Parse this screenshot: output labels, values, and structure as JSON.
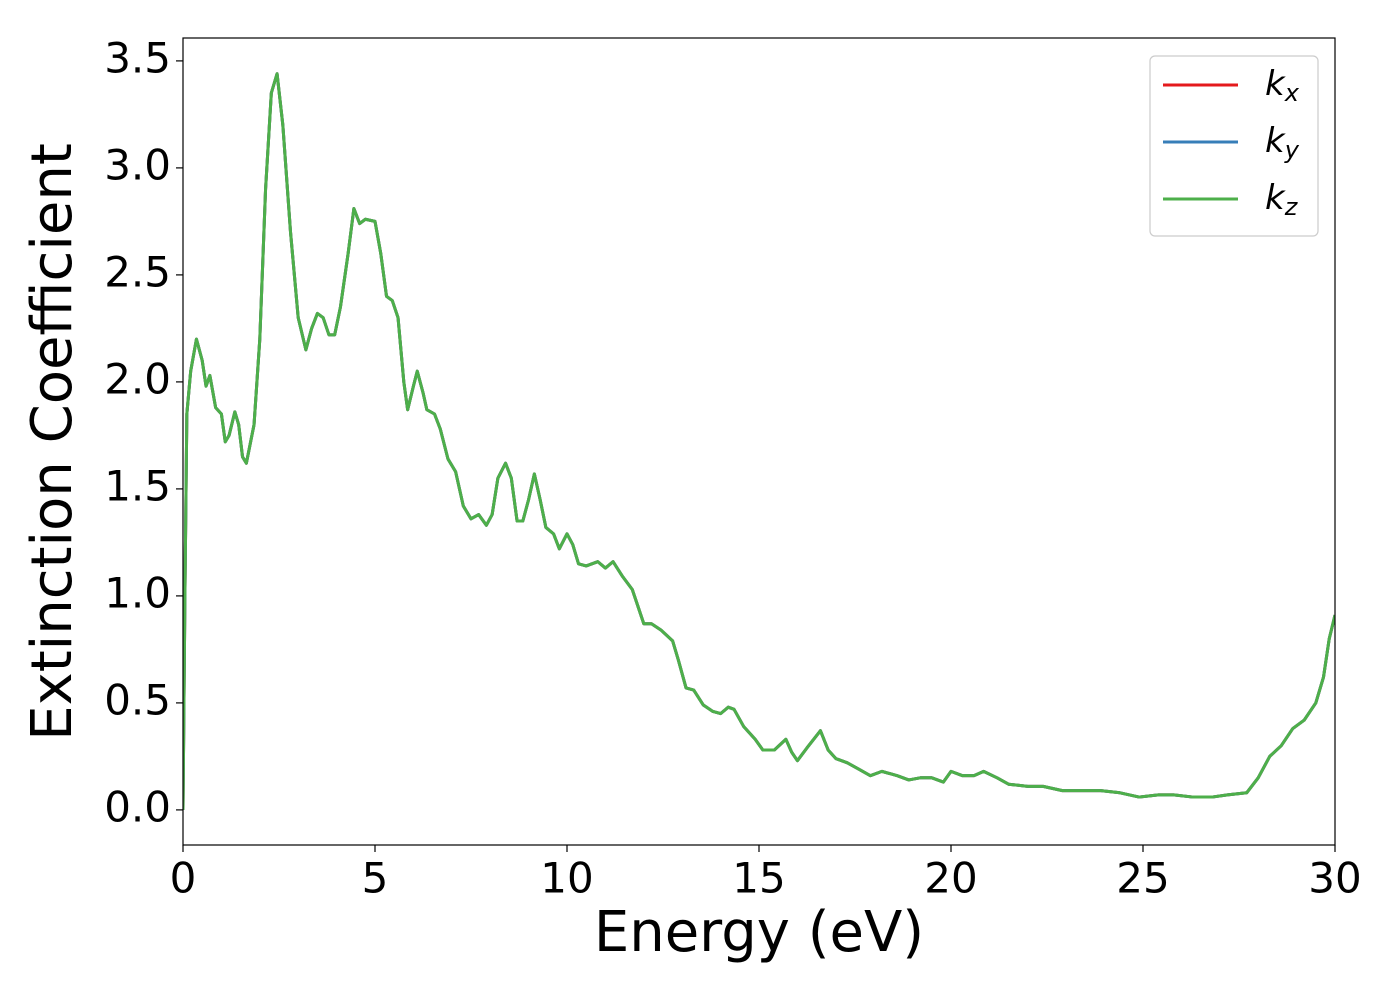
{
  "chart_data": {
    "type": "line",
    "xlabel": "Energy (eV)",
    "ylabel": "Extinction Coefficient",
    "xlim": [
      0,
      30
    ],
    "ylim": [
      -0.164,
      3.607
    ],
    "xticks": [
      0,
      5,
      10,
      15,
      20,
      25,
      30
    ],
    "yticks": [
      {
        "value": 0,
        "label": "0.0"
      },
      0.5,
      {
        "value": 1,
        "label": "1.0"
      },
      1.5,
      {
        "value": 2,
        "label": "2.0"
      },
      2.5,
      {
        "value": 3,
        "label": "3.0"
      },
      3.5
    ],
    "legend": "upper right",
    "x": [
      0,
      0.05,
      0.1,
      0.2,
      0.35,
      0.5,
      0.6,
      0.7,
      0.85,
      1.0,
      1.1,
      1.2,
      1.35,
      1.45,
      1.55,
      1.65,
      1.85,
      2.0,
      2.15,
      2.3,
      2.45,
      2.6,
      2.8,
      3.0,
      3.2,
      3.35,
      3.5,
      3.65,
      3.8,
      3.95,
      4.1,
      4.3,
      4.45,
      4.6,
      4.75,
      5.0,
      5.15,
      5.3,
      5.45,
      5.6,
      5.75,
      5.85,
      6.0,
      6.1,
      6.25,
      6.35,
      6.55,
      6.7,
      6.9,
      7.1,
      7.3,
      7.5,
      7.7,
      7.9,
      8.05,
      8.2,
      8.4,
      8.55,
      8.7,
      8.85,
      9.0,
      9.15,
      9.3,
      9.45,
      9.65,
      9.8,
      10.0,
      10.15,
      10.3,
      10.5,
      10.8,
      11.0,
      11.2,
      11.45,
      11.7,
      11.85,
      12.0,
      12.2,
      12.45,
      12.75,
      12.9,
      13.1,
      13.3,
      13.55,
      13.8,
      14.0,
      14.2,
      14.35,
      14.6,
      14.9,
      15.1,
      15.4,
      15.7,
      15.85,
      16.0,
      16.25,
      16.6,
      16.8,
      17.0,
      17.3,
      17.6,
      17.9,
      18.2,
      18.6,
      18.9,
      19.2,
      19.5,
      19.8,
      20.0,
      20.3,
      20.6,
      20.85,
      21.2,
      21.5,
      22.0,
      22.4,
      22.9,
      23.4,
      23.9,
      24.4,
      24.9,
      25.4,
      25.8,
      26.3,
      26.8,
      27.2,
      27.7,
      28.0,
      28.3,
      28.6,
      28.9,
      29.2,
      29.5,
      29.7,
      29.85,
      30.0
    ],
    "series": [
      {
        "name": "kx",
        "color": "#e41a1c",
        "values": [
          0,
          1.0,
          1.85,
          2.05,
          2.2,
          2.1,
          1.98,
          2.03,
          1.88,
          1.85,
          1.72,
          1.75,
          1.86,
          1.8,
          1.65,
          1.62,
          1.8,
          2.2,
          2.9,
          3.35,
          3.44,
          3.2,
          2.7,
          2.3,
          2.15,
          2.25,
          2.32,
          2.3,
          2.22,
          2.22,
          2.35,
          2.6,
          2.81,
          2.74,
          2.76,
          2.75,
          2.6,
          2.4,
          2.38,
          2.3,
          2.0,
          1.87,
          1.98,
          2.05,
          1.95,
          1.87,
          1.85,
          1.78,
          1.64,
          1.58,
          1.42,
          1.36,
          1.38,
          1.33,
          1.38,
          1.55,
          1.62,
          1.55,
          1.35,
          1.35,
          1.45,
          1.57,
          1.45,
          1.32,
          1.29,
          1.22,
          1.29,
          1.24,
          1.15,
          1.14,
          1.16,
          1.13,
          1.16,
          1.09,
          1.03,
          0.95,
          0.87,
          0.87,
          0.84,
          0.79,
          0.7,
          0.57,
          0.56,
          0.49,
          0.46,
          0.45,
          0.48,
          0.47,
          0.39,
          0.33,
          0.28,
          0.28,
          0.33,
          0.27,
          0.23,
          0.29,
          0.37,
          0.28,
          0.24,
          0.22,
          0.19,
          0.16,
          0.18,
          0.16,
          0.14,
          0.15,
          0.15,
          0.13,
          0.18,
          0.16,
          0.16,
          0.18,
          0.15,
          0.12,
          0.11,
          0.11,
          0.09,
          0.09,
          0.09,
          0.08,
          0.06,
          0.07,
          0.07,
          0.06,
          0.06,
          0.07,
          0.08,
          0.15,
          0.25,
          0.3,
          0.38,
          0.42,
          0.5,
          0.62,
          0.8,
          0.91
        ]
      },
      {
        "name": "ky",
        "color": "#377eb8",
        "values": [
          0,
          1.0,
          1.85,
          2.05,
          2.2,
          2.1,
          1.98,
          2.03,
          1.88,
          1.85,
          1.72,
          1.75,
          1.86,
          1.8,
          1.65,
          1.62,
          1.8,
          2.2,
          2.9,
          3.35,
          3.44,
          3.2,
          2.7,
          2.3,
          2.15,
          2.25,
          2.32,
          2.3,
          2.22,
          2.22,
          2.35,
          2.6,
          2.81,
          2.74,
          2.76,
          2.75,
          2.6,
          2.4,
          2.38,
          2.3,
          2.0,
          1.87,
          1.98,
          2.05,
          1.95,
          1.87,
          1.85,
          1.78,
          1.64,
          1.58,
          1.42,
          1.36,
          1.38,
          1.33,
          1.38,
          1.55,
          1.62,
          1.55,
          1.35,
          1.35,
          1.45,
          1.57,
          1.45,
          1.32,
          1.29,
          1.22,
          1.29,
          1.24,
          1.15,
          1.14,
          1.16,
          1.13,
          1.16,
          1.09,
          1.03,
          0.95,
          0.87,
          0.87,
          0.84,
          0.79,
          0.7,
          0.57,
          0.56,
          0.49,
          0.46,
          0.45,
          0.48,
          0.47,
          0.39,
          0.33,
          0.28,
          0.28,
          0.33,
          0.27,
          0.23,
          0.29,
          0.37,
          0.28,
          0.24,
          0.22,
          0.19,
          0.16,
          0.18,
          0.16,
          0.14,
          0.15,
          0.15,
          0.13,
          0.18,
          0.16,
          0.16,
          0.18,
          0.15,
          0.12,
          0.11,
          0.11,
          0.09,
          0.09,
          0.09,
          0.08,
          0.06,
          0.07,
          0.07,
          0.06,
          0.06,
          0.07,
          0.08,
          0.15,
          0.25,
          0.3,
          0.38,
          0.42,
          0.5,
          0.62,
          0.8,
          0.91
        ]
      },
      {
        "name": "kz",
        "color": "#4daf4a",
        "values": [
          0,
          1.0,
          1.85,
          2.05,
          2.2,
          2.1,
          1.98,
          2.03,
          1.88,
          1.85,
          1.72,
          1.75,
          1.86,
          1.8,
          1.65,
          1.62,
          1.8,
          2.2,
          2.9,
          3.35,
          3.44,
          3.2,
          2.7,
          2.3,
          2.15,
          2.25,
          2.32,
          2.3,
          2.22,
          2.22,
          2.35,
          2.6,
          2.81,
          2.74,
          2.76,
          2.75,
          2.6,
          2.4,
          2.38,
          2.3,
          2.0,
          1.87,
          1.98,
          2.05,
          1.95,
          1.87,
          1.85,
          1.78,
          1.64,
          1.58,
          1.42,
          1.36,
          1.38,
          1.33,
          1.38,
          1.55,
          1.62,
          1.55,
          1.35,
          1.35,
          1.45,
          1.57,
          1.45,
          1.32,
          1.29,
          1.22,
          1.29,
          1.24,
          1.15,
          1.14,
          1.16,
          1.13,
          1.16,
          1.09,
          1.03,
          0.95,
          0.87,
          0.87,
          0.84,
          0.79,
          0.7,
          0.57,
          0.56,
          0.49,
          0.46,
          0.45,
          0.48,
          0.47,
          0.39,
          0.33,
          0.28,
          0.28,
          0.33,
          0.27,
          0.23,
          0.29,
          0.37,
          0.28,
          0.24,
          0.22,
          0.19,
          0.16,
          0.18,
          0.16,
          0.14,
          0.15,
          0.15,
          0.13,
          0.18,
          0.16,
          0.16,
          0.18,
          0.15,
          0.12,
          0.11,
          0.11,
          0.09,
          0.09,
          0.09,
          0.08,
          0.06,
          0.07,
          0.07,
          0.06,
          0.06,
          0.07,
          0.08,
          0.15,
          0.25,
          0.3,
          0.38,
          0.42,
          0.5,
          0.62,
          0.8,
          0.91
        ]
      }
    ]
  }
}
